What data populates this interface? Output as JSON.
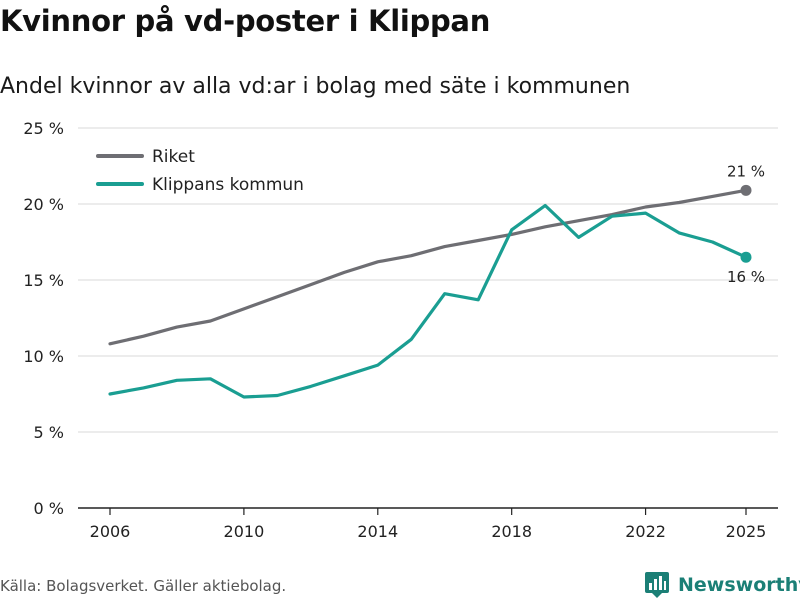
{
  "title": "Kvinnor på vd-poster i Klippan",
  "subtitle": "Andel kvinnor av alla vd:ar i bolag med säte i kommunen",
  "source": "Källa: Bolagsverket. Gäller aktiebolag.",
  "brand": "Newsworthy",
  "colors": {
    "riket": "#6e6e73",
    "klippan": "#1a9e92",
    "grid": "#d9d9d9",
    "axis": "#222222",
    "brand": "#1b7f76"
  },
  "chart_data": {
    "type": "line",
    "title": "Kvinnor på vd-poster i Klippan",
    "xlabel": "",
    "ylabel": "",
    "x": [
      2006,
      2007,
      2008,
      2009,
      2010,
      2011,
      2012,
      2013,
      2014,
      2015,
      2016,
      2017,
      2018,
      2019,
      2020,
      2021,
      2022,
      2023,
      2024,
      2025
    ],
    "xlim": [
      2006,
      2025
    ],
    "ylim": [
      0,
      25
    ],
    "x_ticks": [
      2006,
      2010,
      2014,
      2018,
      2022,
      2025
    ],
    "y_ticks": [
      0,
      5,
      10,
      15,
      20,
      25
    ],
    "y_tick_labels": [
      "0 %",
      "5 %",
      "10 %",
      "15 %",
      "20 %",
      "25 %"
    ],
    "grid": true,
    "legend_position": "top-left",
    "series": [
      {
        "name": "Riket",
        "color": "#6e6e73",
        "values": [
          10.8,
          11.3,
          11.9,
          12.3,
          13.1,
          13.9,
          14.7,
          15.5,
          16.2,
          16.6,
          17.2,
          17.6,
          18.0,
          18.5,
          18.9,
          19.3,
          19.8,
          20.1,
          20.5,
          20.9
        ],
        "end_label": "21 %",
        "end_label_position": "above"
      },
      {
        "name": "Klippans kommun",
        "color": "#1a9e92",
        "values": [
          7.5,
          7.9,
          8.4,
          8.5,
          7.3,
          7.4,
          8.0,
          8.7,
          9.4,
          11.1,
          14.1,
          13.7,
          18.3,
          19.9,
          17.8,
          19.2,
          19.4,
          18.1,
          17.5,
          16.5
        ],
        "end_label": "16 %",
        "end_label_position": "below"
      }
    ]
  }
}
